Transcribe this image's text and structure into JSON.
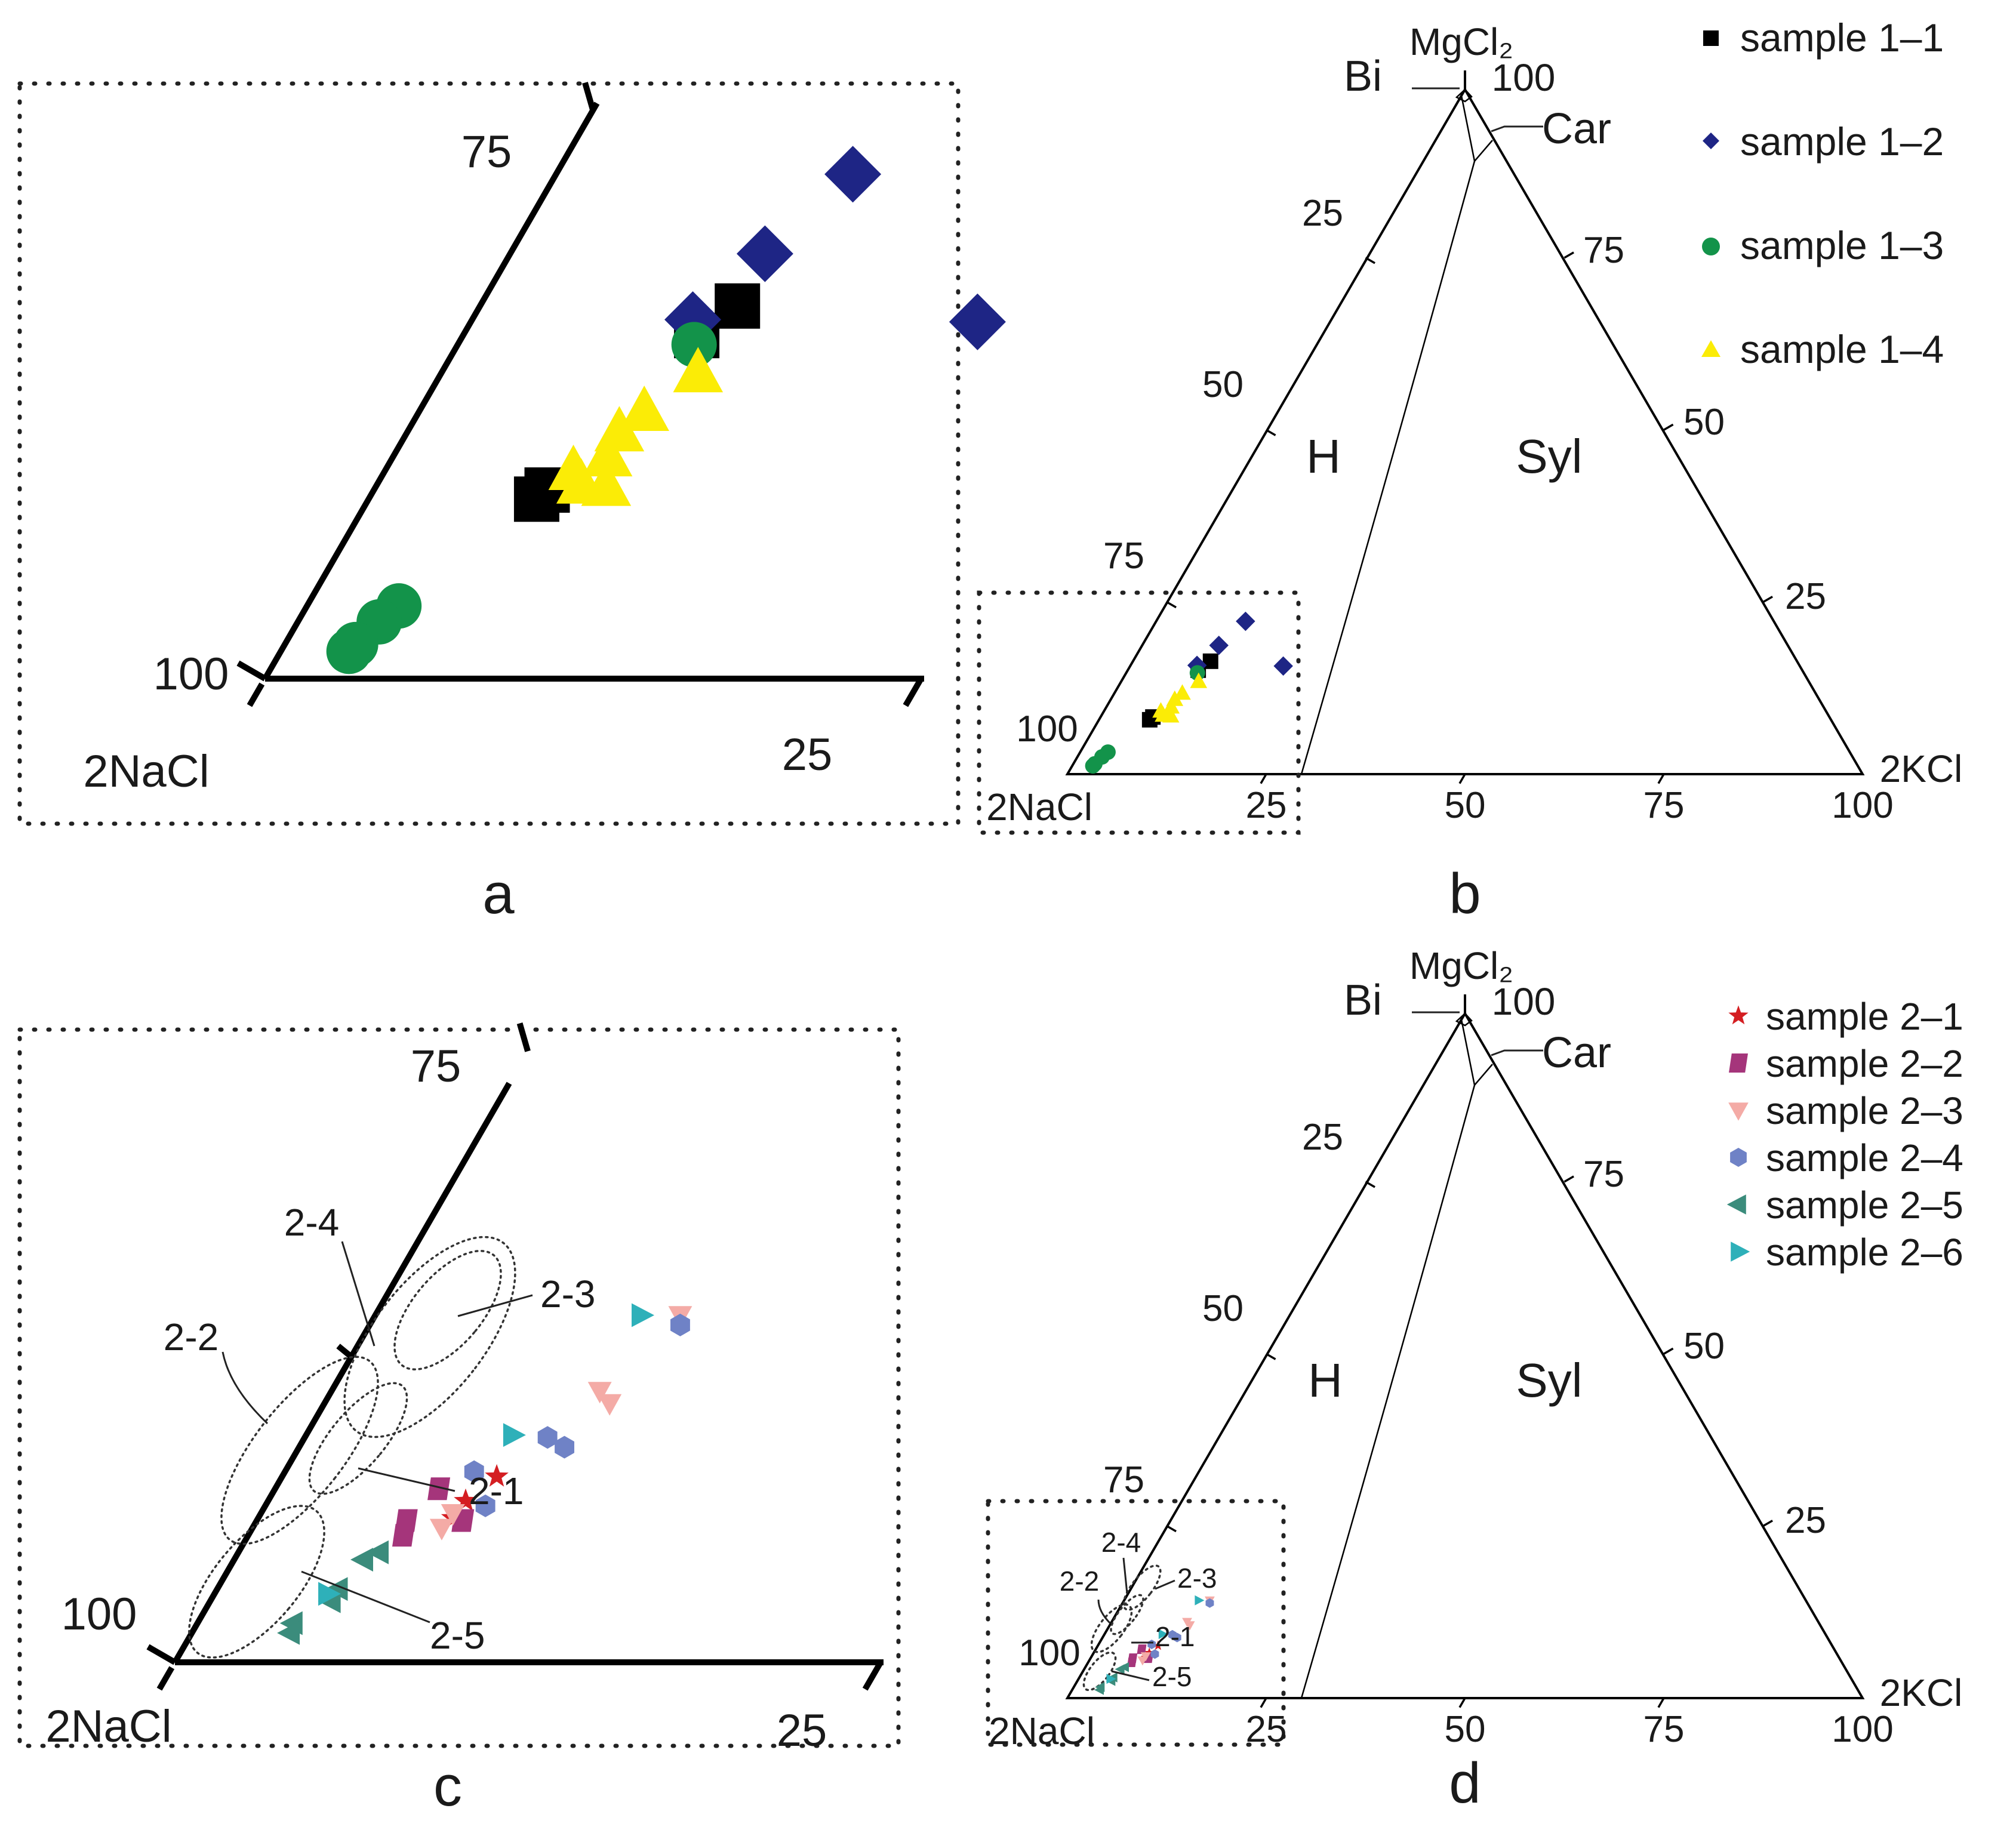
{
  "chart_data": [
    {
      "panel": "b",
      "type": "ternary-scatter",
      "caption": "b",
      "apexes": {
        "top": "MgCl₂",
        "left": "2NaCl",
        "right": "2KCl"
      },
      "top_apex_tick": "100",
      "left_axis_ticks": [
        "25",
        "50",
        "75",
        "100"
      ],
      "right_axis_ticks": [
        "75",
        "50",
        "25"
      ],
      "bottom_axis_ticks": [
        "25",
        "50",
        "75",
        "100"
      ],
      "fields": [
        "Bi",
        "Car",
        "H",
        "Syl"
      ],
      "point_units": "fraction (KCl, MgCl2)",
      "series": [
        {
          "name": "sample 1–1",
          "marker": "square",
          "color": "#000000",
          "points": [
            [
              0.089,
              0.151
            ],
            [
              0.098,
              0.164
            ],
            [
              0.064,
              0.079
            ],
            [
              0.066,
              0.083
            ]
          ]
        },
        {
          "name": "sample 1–2",
          "marker": "diamond",
          "color": "#1e2585",
          "points": [
            [
              0.113,
              0.222
            ],
            [
              0.097,
              0.187
            ],
            [
              0.193,
              0.157
            ],
            [
              0.084,
              0.158
            ]
          ]
        },
        {
          "name": "sample 1–3",
          "marker": "circle",
          "color": "#13934a",
          "points": [
            [
              0.09,
              0.147
            ],
            [
              0.035,
              0.032
            ],
            [
              0.031,
              0.025
            ],
            [
              0.027,
              0.015
            ],
            [
              0.026,
              0.012
            ]
          ]
        },
        {
          "name": "sample 1–4",
          "marker": "triangle-up",
          "color": "#fbec06",
          "points": [
            [
              0.098,
              0.134
            ],
            [
              0.086,
              0.117
            ],
            [
              0.081,
              0.108
            ],
            [
              0.082,
              0.097
            ],
            [
              0.072,
              0.091
            ],
            [
              0.078,
              0.085
            ],
            [
              0.088,
              0.084
            ]
          ]
        }
      ],
      "inset_frame": "dotted box around the 2NaCl corner, enlarged in panel a",
      "legend": [
        "sample 1–1",
        "sample 1–2",
        "sample 1–3",
        "sample 1–4"
      ]
    },
    {
      "panel": "a",
      "type": "ternary-scatter",
      "caption": "a",
      "description": "enlarged 2NaCl corner of panel b",
      "corner_label": "2NaCl",
      "left_axis_ticks": [
        "75",
        "100"
      ],
      "bottom_axis_ticks": [
        "25"
      ],
      "series_ref": "same data as panel b"
    },
    {
      "panel": "d",
      "type": "ternary-scatter",
      "caption": "d",
      "apexes": {
        "top": "MgCl₂",
        "left": "2NaCl",
        "right": "2KCl"
      },
      "top_apex_tick": "100",
      "left_axis_ticks": [
        "25",
        "50",
        "75",
        "100"
      ],
      "right_axis_ticks": [
        "75",
        "50",
        "25"
      ],
      "bottom_axis_ticks": [
        "25",
        "50",
        "75",
        "100"
      ],
      "fields": [
        "Bi",
        "Car",
        "H",
        "Syl"
      ],
      "point_units": "fraction (KCl, MgCl2)",
      "series": [
        {
          "name": "sample 2–1",
          "marker": "star",
          "color": "#d41e22",
          "points": [
            [
              0.076,
              0.076
            ],
            [
              0.07,
              0.066
            ],
            [
              0.069,
              0.059
            ]
          ]
        },
        {
          "name": "sample 2–2",
          "marker": "parallelogram",
          "color": "#a5357b",
          "points": [
            [
              0.058,
              0.071
            ],
            [
              0.053,
              0.058
            ],
            [
              0.055,
              0.052
            ],
            [
              0.073,
              0.058
            ]
          ]
        },
        {
          "name": "sample 2–3",
          "marker": "triangle-down",
          "color": "#f4aba6",
          "points": [
            [
              0.108,
              0.142
            ],
            [
              0.095,
              0.111
            ],
            [
              0.101,
              0.106
            ],
            [
              0.068,
              0.061
            ],
            [
              0.067,
              0.055
            ]
          ]
        },
        {
          "name": "sample 2–4",
          "marker": "hexagon",
          "color": "#6f82c6",
          "points": [
            [
              0.11,
              0.138
            ],
            [
              0.086,
              0.092
            ],
            [
              0.094,
              0.088
            ],
            [
              0.067,
              0.078
            ],
            [
              0.078,
              0.064
            ]
          ]
        },
        {
          "name": "sample 2–5",
          "marker": "triangle-left",
          "color": "#3b8c7c",
          "points": [
            [
              0.05,
              0.045
            ],
            [
              0.046,
              0.042
            ],
            [
              0.043,
              0.03
            ],
            [
              0.043,
              0.025
            ],
            [
              0.034,
              0.016
            ],
            [
              0.035,
              0.012
            ]
          ]
        },
        {
          "name": "sample 2–6",
          "marker": "triangle-right",
          "color": "#2eb0b9",
          "points": [
            [
              0.094,
              0.142
            ],
            [
              0.073,
              0.093
            ],
            [
              0.04,
              0.028
            ]
          ]
        }
      ],
      "group_labels": [
        "2-1",
        "2-2",
        "2-3",
        "2-4",
        "2-5"
      ],
      "inset_frame": "dotted box around the 2NaCl corner, enlarged in panel c",
      "legend": [
        "sample 2–1",
        "sample 2–2",
        "sample 2–3",
        "sample 2–4",
        "sample 2–5",
        "sample 2–6"
      ]
    },
    {
      "panel": "c",
      "type": "ternary-scatter",
      "caption": "c",
      "description": "enlarged 2NaCl corner of panel d",
      "corner_label": "2NaCl",
      "left_axis_ticks": [
        "75",
        "100"
      ],
      "bottom_axis_ticks": [
        "25"
      ],
      "group_labels": [
        "2-1",
        "2-2",
        "2-3",
        "2-4",
        "2-5"
      ],
      "series_ref": "same data as panel d"
    }
  ]
}
